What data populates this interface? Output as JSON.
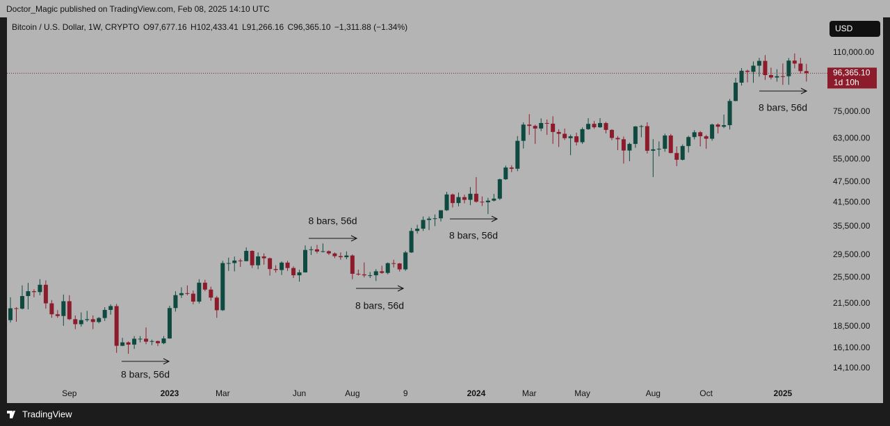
{
  "chart_data": {
    "type": "candlestick",
    "published": "Doctor_Magic published on TradingView.com, Feb 08, 2025 14:10 UTC",
    "header": {
      "symbol": "Bitcoin / U.S. Dollar, 1W, CRYPTO",
      "open": "O97,677.16",
      "high": "H102,433.41",
      "low": "L91,266.16",
      "close": "C96,365.10",
      "change": "−1,311.88 (−1.34%)"
    },
    "currency": "USD",
    "last_price_label": "96,365.10",
    "countdown": "1d 10h",
    "brand": "TradingView",
    "up_color": "#0e4a3f",
    "down_color": "#8c1c2b",
    "log_scale": true,
    "grid": false,
    "ylim": [
      11350,
      138600
    ],
    "yticks": [
      {
        "value": 110000,
        "label": "110,000.00"
      },
      {
        "value": 75000,
        "label": "75,000.00"
      },
      {
        "value": 63000,
        "label": "63,000.00"
      },
      {
        "value": 55000,
        "label": "55,000.00"
      },
      {
        "value": 47500,
        "label": "47,500.00"
      },
      {
        "value": 41500,
        "label": "41,500.00"
      },
      {
        "value": 35500,
        "label": "35,500.00"
      },
      {
        "value": 29500,
        "label": "29,500.00"
      },
      {
        "value": 25500,
        "label": "25,500.00"
      },
      {
        "value": 21500,
        "label": "21,500.00"
      },
      {
        "value": 18500,
        "label": "18,500.00"
      },
      {
        "value": 16100,
        "label": "16,100.00"
      },
      {
        "value": 14100,
        "label": "14,100.00"
      }
    ],
    "xticks": [
      {
        "value": 10,
        "label": "Sep"
      },
      {
        "value": 27,
        "label": "2023"
      },
      {
        "value": 36,
        "label": "Mar"
      },
      {
        "value": 49,
        "label": "Jun"
      },
      {
        "value": 58,
        "label": "Aug"
      },
      {
        "value": 67,
        "label": "9"
      },
      {
        "value": 79,
        "label": "2024"
      },
      {
        "value": 88,
        "label": "Mar"
      },
      {
        "value": 97,
        "label": "May"
      },
      {
        "value": 109,
        "label": "Aug"
      },
      {
        "value": 118,
        "label": "Oct"
      },
      {
        "value": 131,
        "label": "2025"
      }
    ],
    "annotations": [
      "8 bars, 56d",
      "8 bars, 56d",
      "8 bars, 56d",
      "8 bars, 56d",
      "8 bars, 56d"
    ],
    "open": [
      19300,
      20850,
      20800,
      22580,
      23300,
      23170,
      24300,
      21530,
      20050,
      19830,
      21830,
      19420,
      18800,
      19310,
      19420,
      19070,
      19570,
      20630,
      21150,
      16330,
      16700,
      16460,
      17100,
      17100,
      16780,
      16840,
      16610,
      17130,
      20880,
      22710,
      23010,
      22930,
      21780,
      24630,
      23550,
      22350,
      20590,
      27990,
      27990,
      28450,
      28340,
      30300,
      27590,
      29230,
      28880,
      26920,
      26750,
      28070,
      27100,
      25850,
      26340,
      30480,
      30600,
      30170,
      30230,
      29800,
      29280,
      29080,
      29400,
      26100,
      26000,
      25840,
      25850,
      26530,
      26250,
      27970,
      27920,
      26860,
      29990,
      34500,
      35010,
      37060,
      37380,
      37450,
      39470,
      43750,
      41370,
      43000,
      42250,
      43950,
      41730,
      41580,
      42030,
      42580,
      48300,
      52140,
      51730,
      62030,
      68950,
      68370,
      67210,
      69670,
      69360,
      65730,
      64940,
      63120,
      63890,
      61480,
      66930,
      69290,
      67760,
      69650,
      66620,
      63210,
      62680,
      58240,
      60800,
      68130,
      68250,
      58160,
      58710,
      58910,
      64220,
      57300,
      54840,
      59960,
      63580,
      65600,
      63910,
      62900,
      69000,
      68000,
      68700,
      80400,
      90600,
      97900,
      97200,
      101200,
      104400,
      95200,
      93700,
      94500,
      94480,
      104600,
      102600,
      97677.16
    ],
    "high": [
      22400,
      21000,
      24200,
      24600,
      23600,
      25200,
      25000,
      22000,
      20600,
      22800,
      22700,
      19900,
      20300,
      20500,
      19900,
      19700,
      21000,
      21400,
      21450,
      17200,
      16800,
      17400,
      17400,
      18400,
      17000,
      16900,
      17400,
      21200,
      23300,
      23900,
      24200,
      23400,
      25200,
      25100,
      24000,
      22600,
      28400,
      29000,
      29200,
      28800,
      31000,
      30400,
      30000,
      29800,
      29000,
      27600,
      28300,
      28400,
      27400,
      26800,
      31400,
      31200,
      31500,
      31800,
      30400,
      30000,
      30000,
      30200,
      29600,
      26800,
      28100,
      26400,
      26900,
      27500,
      28100,
      28600,
      28000,
      30300,
      35200,
      35900,
      37900,
      37900,
      38400,
      39500,
      44500,
      44000,
      44300,
      43700,
      45900,
      49000,
      43200,
      42800,
      43900,
      48500,
      52800,
      52900,
      64000,
      70000,
      73800,
      68900,
      71800,
      71300,
      72800,
      66900,
      67200,
      64600,
      65400,
      67700,
      71900,
      70600,
      71900,
      70200,
      66900,
      64000,
      63800,
      61300,
      68300,
      68800,
      70000,
      62700,
      61800,
      65000,
      64900,
      59800,
      60600,
      64100,
      66500,
      66100,
      64500,
      69400,
      69500,
      73600,
      81500,
      93500,
      99600,
      98600,
      104000,
      106500,
      108400,
      99900,
      98900,
      102700,
      106400,
      109600,
      106500,
      102433.41
    ],
    "low": [
      19000,
      19100,
      20700,
      20700,
      22400,
      22700,
      20800,
      19600,
      19600,
      18600,
      19300,
      18200,
      18500,
      19100,
      18200,
      18900,
      19200,
      20000,
      15600,
      16300,
      15500,
      16000,
      16700,
      16500,
      16400,
      16300,
      16500,
      17100,
      20400,
      22300,
      22700,
      21400,
      21500,
      23300,
      21900,
      19600,
      20500,
      26600,
      26500,
      27300,
      28300,
      27100,
      26900,
      27700,
      25800,
      26300,
      25900,
      26600,
      25400,
      24800,
      26300,
      29500,
      29800,
      30000,
      29500,
      28900,
      28600,
      28700,
      25200,
      25800,
      25500,
      25400,
      24900,
      26100,
      26000,
      27200,
      26500,
      26600,
      29900,
      33900,
      34500,
      34700,
      35600,
      36700,
      39300,
      40200,
      40500,
      41300,
      40800,
      41500,
      40600,
      38500,
      41800,
      42200,
      48100,
      50600,
      50900,
      59000,
      64500,
      60800,
      66100,
      64500,
      60800,
      59600,
      62400,
      56500,
      60200,
      60800,
      66600,
      67100,
      67500,
      65100,
      62300,
      58400,
      53500,
      54300,
      59300,
      63500,
      57100,
      49000,
      56100,
      57800,
      57200,
      52600,
      54600,
      57500,
      62600,
      59800,
      58900,
      62100,
      65100,
      67400,
      66800,
      80300,
      88900,
      90800,
      90500,
      94200,
      92200,
      92500,
      91200,
      89300,
      89300,
      99500,
      96200,
      91266.16
    ],
    "close": [
      20850,
      20800,
      22580,
      23300,
      23170,
      24300,
      21530,
      20050,
      19830,
      21830,
      19420,
      18800,
      19310,
      19420,
      19070,
      19570,
      20630,
      21150,
      16330,
      16700,
      16460,
      17100,
      17100,
      16780,
      16840,
      16610,
      17130,
      20880,
      22710,
      23010,
      22930,
      21780,
      24630,
      23550,
      22350,
      20590,
      27990,
      27990,
      28450,
      28340,
      30300,
      27590,
      29230,
      28880,
      26920,
      26750,
      28070,
      27100,
      25850,
      26340,
      30480,
      30600,
      30170,
      30230,
      29800,
      29280,
      29080,
      29400,
      26100,
      26000,
      25840,
      25850,
      26530,
      26250,
      27970,
      27920,
      26860,
      29990,
      34500,
      35010,
      37060,
      37380,
      37450,
      39470,
      43750,
      41370,
      43000,
      42250,
      43950,
      41730,
      41580,
      42030,
      42580,
      48300,
      52140,
      51730,
      62030,
      68950,
      68370,
      67210,
      69670,
      69360,
      65730,
      64940,
      63120,
      63890,
      61480,
      66930,
      69290,
      67760,
      69650,
      66620,
      63210,
      62680,
      58240,
      60800,
      68130,
      68250,
      58160,
      58710,
      58910,
      64220,
      57300,
      54840,
      59960,
      63580,
      65600,
      63910,
      62900,
      69000,
      68000,
      68700,
      80400,
      90600,
      97900,
      97200,
      101200,
      104400,
      95200,
      93700,
      94500,
      94480,
      104600,
      102600,
      97677.16,
      96365.1
    ]
  }
}
